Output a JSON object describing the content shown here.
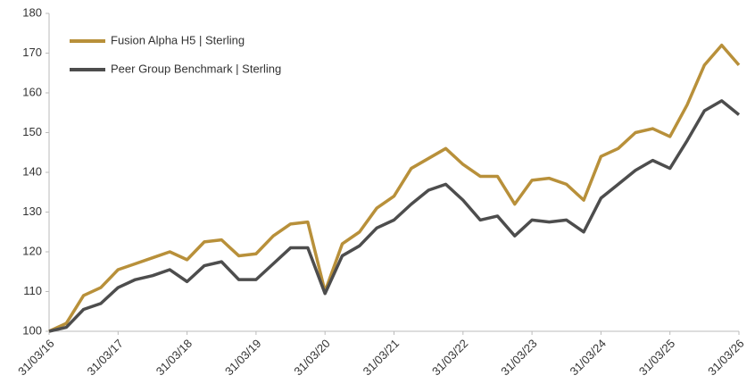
{
  "chart_data": {
    "type": "line",
    "categories": [
      "31/03/16",
      null,
      null,
      null,
      "31/03/17",
      null,
      null,
      null,
      "31/03/18",
      null,
      null,
      null,
      "31/03/19",
      null,
      null,
      null,
      "31/03/20",
      null,
      null,
      null,
      "31/03/21",
      null,
      null,
      null,
      "31/03/22",
      null,
      null,
      null,
      "31/03/23",
      null,
      null,
      null,
      "31/03/24",
      null,
      null,
      null,
      "31/03/25",
      null,
      null,
      null,
      "31/03/26"
    ],
    "series": [
      {
        "name": "Fusion Alpha H5 | Sterling",
        "color": "#b8903a",
        "values": [
          100,
          102,
          109,
          111,
          115.5,
          117,
          118.5,
          120,
          118,
          122.5,
          123,
          119,
          119.5,
          124,
          127,
          127.5,
          110,
          122,
          125,
          131,
          134,
          141,
          143.5,
          146,
          142,
          139,
          139,
          132,
          138,
          138.5,
          137,
          133,
          144,
          146,
          150,
          151,
          149,
          157,
          167,
          172,
          167
        ]
      },
      {
        "name": "Peer Group Benchmark | Sterling",
        "color": "#4d4d4d",
        "values": [
          100,
          101,
          105.5,
          107,
          111,
          113,
          114,
          115.5,
          112.5,
          116.5,
          117.5,
          113,
          113,
          117,
          121,
          121,
          109.5,
          119,
          121.5,
          126,
          128,
          132,
          135.5,
          137,
          133,
          128,
          129,
          124,
          128,
          127.5,
          128,
          125,
          133.5,
          137,
          140.5,
          143,
          141,
          148,
          155.5,
          158,
          154.5
        ]
      }
    ],
    "ylim": [
      100,
      180
    ],
    "yticks": [
      100,
      110,
      120,
      130,
      140,
      150,
      160,
      170,
      180
    ],
    "legend": "upper-left"
  }
}
